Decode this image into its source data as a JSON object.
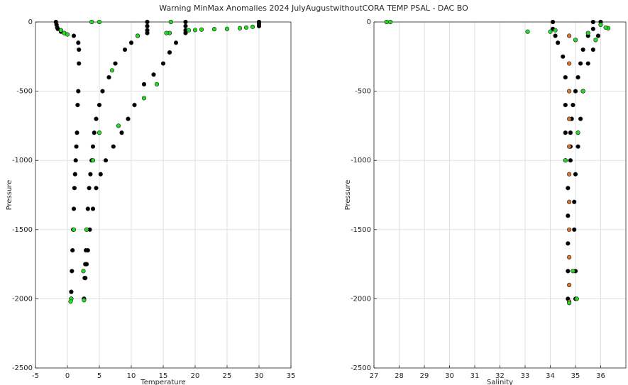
{
  "chart_data": [
    {
      "type": "scatter",
      "title": "Warning MinMax Anomalies 2024 JulyAugustwithoutCORA TEMP PSAL - DAC BO",
      "xlabel": "Temperature",
      "ylabel": "Pressure",
      "grid": true,
      "xlim": [
        -5,
        35
      ],
      "xticks": [
        -5,
        0,
        5,
        10,
        15,
        20,
        25,
        30,
        35
      ],
      "ylim": [
        -2500,
        0
      ],
      "yticks": [
        -2500,
        -2000,
        -1500,
        -1000,
        -500,
        0
      ],
      "series": [
        {
          "color": "#000000",
          "x": [
            -1.8,
            -1.7,
            -1.6,
            -1.5,
            -1.0,
            -0.5,
            1.0,
            1.7,
            1.8,
            1.8,
            1.7,
            1.6,
            1.5,
            1.4,
            1.3,
            1.2,
            1.1,
            1.0,
            0.9,
            0.8,
            0.7,
            0.6,
            0.6,
            12.5,
            12.5,
            12.5,
            12.5,
            11.0,
            10.0,
            9.0,
            7.5,
            6.5,
            5.5,
            5.0,
            4.5,
            4.2,
            4.0,
            3.8,
            3.6,
            3.4,
            3.2,
            3.0,
            2.9,
            2.8,
            2.7,
            2.6,
            18.5,
            18.5,
            18.5,
            18.5,
            17.0,
            16.0,
            15.0,
            13.5,
            12.0,
            10.5,
            9.5,
            8.5,
            7.2,
            6.0,
            5.2,
            4.5,
            4.0,
            3.5,
            3.2,
            3.0,
            2.8,
            2.6,
            30.0,
            30.0,
            30.0
          ],
          "values": [
            0,
            -20,
            -40,
            -50,
            -70,
            -80,
            -100,
            -150,
            -200,
            -300,
            -500,
            -600,
            -800,
            -900,
            -1000,
            -1100,
            -1200,
            -1350,
            -1500,
            -1650,
            -1800,
            -1950,
            -2000,
            0,
            -30,
            -60,
            -80,
            -100,
            -150,
            -200,
            -300,
            -400,
            -500,
            -600,
            -700,
            -800,
            -900,
            -1000,
            -1100,
            -1200,
            -1350,
            -1500,
            -1650,
            -1750,
            -1850,
            -2000,
            0,
            -30,
            -60,
            -80,
            -150,
            -220,
            -300,
            -380,
            -450,
            -600,
            -700,
            -800,
            -900,
            -1000,
            -1100,
            -1200,
            -1350,
            -1500,
            -1650,
            -1750,
            -1850,
            -2000,
            0,
            -15,
            -30
          ]
        },
        {
          "color": "#22dd22",
          "x": [
            3.8,
            5.0,
            16.0,
            15.5,
            16.2,
            19.0,
            20.0,
            21.0,
            23.0,
            25.0,
            27.0,
            28.0,
            29.0,
            -1.0,
            -0.5,
            0.0,
            7.0,
            11.0,
            5.0,
            4.0,
            3.0,
            1.0,
            0.6,
            0.5,
            2.6,
            2.5,
            14.0,
            12.0,
            8.0
          ],
          "values": [
            0,
            0,
            -80,
            -80,
            0,
            -60,
            -58,
            -55,
            -52,
            -50,
            -45,
            -40,
            -35,
            -60,
            -80,
            -90,
            -350,
            -100,
            -800,
            -1000,
            -1500,
            -1500,
            -2000,
            -2020,
            -2010,
            -1800,
            -450,
            -550,
            -750
          ]
        }
      ]
    },
    {
      "type": "scatter",
      "xlabel": "Salinity",
      "ylabel": "Pressure",
      "grid": true,
      "xlim": [
        27,
        37
      ],
      "xticks": [
        27,
        28,
        29,
        30,
        31,
        32,
        33,
        34,
        35,
        36
      ],
      "ylim": [
        -2500,
        0
      ],
      "yticks": [
        -2500,
        -2000,
        -1500,
        -1000,
        -500,
        0
      ],
      "series": [
        {
          "color": "#000000",
          "x": [
            34.1,
            34.1,
            34.2,
            34.3,
            34.5,
            34.6,
            34.6,
            34.6,
            34.6,
            34.7,
            34.7,
            34.7,
            34.7,
            34.7,
            35.7,
            35.7,
            35.5,
            35.3,
            35.2,
            35.1,
            35.0,
            34.9,
            34.85,
            34.8,
            34.8,
            34.8,
            36.0,
            35.9,
            35.7,
            35.5,
            35.3,
            35.2,
            35.1,
            35.0,
            34.95,
            34.95,
            35.0,
            35.0
          ],
          "values": [
            0,
            -50,
            -100,
            -150,
            -250,
            -400,
            -600,
            -800,
            -1000,
            -1200,
            -1400,
            -1600,
            -1800,
            -2000,
            0,
            -50,
            -100,
            -200,
            -300,
            -400,
            -500,
            -600,
            -700,
            -800,
            -900,
            -1000,
            0,
            -100,
            -200,
            -300,
            -500,
            -700,
            -900,
            -1100,
            -1300,
            -1500,
            -1800,
            -2000
          ]
        },
        {
          "color": "#d9752a",
          "x": [
            34.75,
            34.75,
            34.75,
            34.75,
            34.75,
            34.75,
            34.75,
            34.75,
            34.75,
            34.75,
            34.75
          ],
          "values": [
            -100,
            -300,
            -500,
            -700,
            -900,
            -1100,
            -1300,
            -1500,
            -1700,
            -1900,
            -2020
          ]
        },
        {
          "color": "#22dd22",
          "x": [
            27.5,
            27.65,
            33.1,
            34.0,
            35.0,
            35.5,
            36.0,
            36.3,
            36.2,
            35.3,
            35.1,
            34.6,
            34.9,
            35.05,
            34.75,
            35.8,
            34.2
          ],
          "values": [
            0,
            0,
            -70,
            -70,
            -130,
            -80,
            -20,
            -45,
            -40,
            -500,
            -800,
            -1000,
            -1800,
            -2000,
            -2030,
            -130,
            -60
          ]
        }
      ]
    }
  ]
}
